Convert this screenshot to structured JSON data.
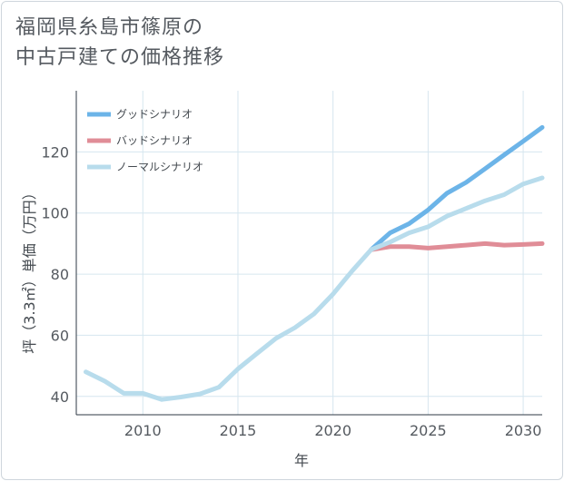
{
  "chart_data": {
    "type": "line",
    "title_lines": [
      "福岡県糸島市篠原の",
      "中古戸建ての価格推移"
    ],
    "xlabel": "年",
    "ylabel": "坪（3.3㎡）単価（万円）",
    "xlim": [
      2006.5,
      2031
    ],
    "ylim": [
      34,
      140
    ],
    "x_ticks": [
      2010,
      2015,
      2020,
      2025,
      2030
    ],
    "y_ticks": [
      40,
      60,
      80,
      100,
      120
    ],
    "legend_position": "top-left",
    "series": [
      {
        "name": "グッドシナリオ",
        "color": "#6cb4e8",
        "x": [
          2022,
          2023,
          2024,
          2025,
          2026,
          2027,
          2028,
          2029,
          2030,
          2031
        ],
        "values": [
          88,
          93.5,
          96.5,
          101,
          106.5,
          110,
          114.5,
          119,
          123.5,
          128
        ]
      },
      {
        "name": "バッドシナリオ",
        "color": "#e08d97",
        "x": [
          2022,
          2023,
          2024,
          2025,
          2026,
          2027,
          2028,
          2029,
          2030,
          2031
        ],
        "values": [
          88,
          89,
          89,
          88.5,
          89,
          89.5,
          90,
          89.5,
          89.7,
          90
        ]
      },
      {
        "name": "ノーマルシナリオ",
        "color": "#b8dcec",
        "x": [
          2007,
          2008,
          2009,
          2010,
          2011,
          2012,
          2013,
          2014,
          2015,
          2016,
          2017,
          2018,
          2019,
          2020,
          2021,
          2022,
          2023,
          2024,
          2025,
          2026,
          2027,
          2028,
          2029,
          2030,
          2031
        ],
        "values": [
          48,
          45,
          41,
          41,
          39,
          39.8,
          40.8,
          43,
          49,
          54,
          59,
          62.5,
          67,
          73.5,
          81,
          88,
          90.5,
          93.5,
          95.5,
          99,
          101.5,
          104,
          106,
          109.5,
          111.5
        ]
      }
    ]
  }
}
